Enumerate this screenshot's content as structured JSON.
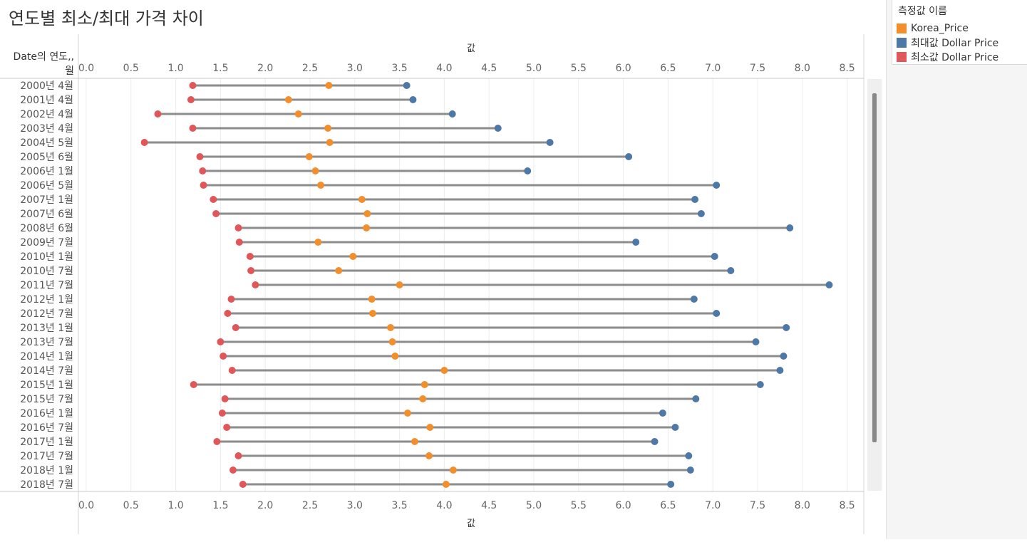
{
  "title": "연도별 최소/최대 가격 차이",
  "legend": {
    "title": "측정값 이름",
    "items": [
      {
        "label": "Korea_Price",
        "color": "#f28e2b"
      },
      {
        "label": "최대값 Dollar Price",
        "color": "#4e79a7"
      },
      {
        "label": "최소값 Dollar Price",
        "color": "#e15759"
      }
    ]
  },
  "chart_data": {
    "type": "dumbbell",
    "title": "연도별 최소/최대 가격 차이",
    "row_header": "Date의 연도, 월",
    "xlabel_top": "값",
    "xlabel_bottom": "값",
    "xlim": [
      -0.05,
      8.75
    ],
    "x_ticks": [
      "0.0",
      "0.5",
      "1.0",
      "1.5",
      "2.0",
      "2.5",
      "3.0",
      "3.5",
      "4.0",
      "4.5",
      "5.0",
      "5.5",
      "6.0",
      "6.5",
      "7.0",
      "7.5",
      "8.0",
      "8.5"
    ],
    "colors": {
      "korea": "#f28e2b",
      "max": "#4e79a7",
      "min": "#e15759",
      "line": "#8c8c8c"
    },
    "categories": [
      "2000년 4월",
      "2001년 4월",
      "2002년 4월",
      "2003년 4월",
      "2004년 5월",
      "2005년 6월",
      "2006년 1월",
      "2006년 5월",
      "2007년 1월",
      "2007년 6월",
      "2008년 6월",
      "2009년 7월",
      "2010년 1월",
      "2010년 7월",
      "2011년 7월",
      "2012년 1월",
      "2012년 7월",
      "2013년 1월",
      "2013년 7월",
      "2014년 1월",
      "2014년 7월",
      "2015년 1월",
      "2015년 7월",
      "2016년 1월",
      "2016년 7월",
      "2017년 1월",
      "2017년 7월",
      "2018년 1월",
      "2018년 7월"
    ],
    "series": [
      {
        "name": "최소값 Dollar Price",
        "values": [
          1.19,
          1.17,
          0.8,
          1.19,
          0.65,
          1.27,
          1.3,
          1.31,
          1.42,
          1.45,
          1.7,
          1.71,
          1.83,
          1.84,
          1.89,
          1.62,
          1.58,
          1.67,
          1.5,
          1.53,
          1.63,
          1.2,
          1.55,
          1.52,
          1.57,
          1.46,
          1.7,
          1.64,
          1.75
        ]
      },
      {
        "name": "Korea_Price",
        "values": [
          2.71,
          2.26,
          2.37,
          2.7,
          2.72,
          2.49,
          2.56,
          2.62,
          3.08,
          3.14,
          3.13,
          2.59,
          2.98,
          2.82,
          3.5,
          3.19,
          3.2,
          3.4,
          3.42,
          3.45,
          4.0,
          3.78,
          3.76,
          3.59,
          3.84,
          3.67,
          3.83,
          4.1,
          4.02
        ]
      },
      {
        "name": "최대값 Dollar Price",
        "values": [
          3.58,
          3.65,
          4.09,
          4.6,
          5.18,
          6.06,
          4.93,
          7.04,
          6.8,
          6.87,
          7.86,
          6.14,
          7.02,
          7.2,
          8.3,
          6.79,
          7.04,
          7.82,
          7.48,
          7.79,
          7.75,
          7.53,
          6.81,
          6.44,
          6.58,
          6.35,
          6.73,
          6.75,
          6.53
        ]
      }
    ]
  }
}
